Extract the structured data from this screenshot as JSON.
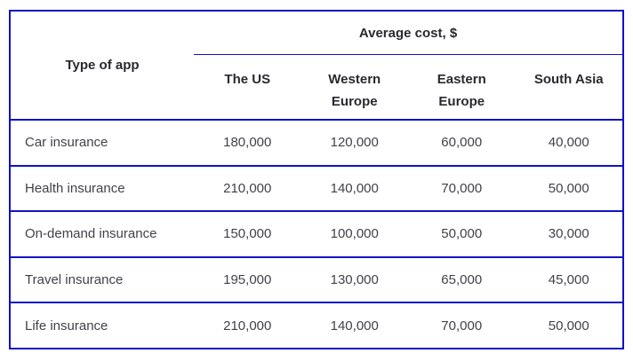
{
  "colors": {
    "border": "#1111c7",
    "heading-text": "#29292f",
    "body-text": "#414149",
    "background": "#ffffff"
  },
  "chart_data": {
    "type": "table",
    "corner_header": "Type of app",
    "group_header": "Average cost, $",
    "columns": [
      "The US",
      "Western Europe",
      "Eastern Europe",
      "South Asia"
    ],
    "rows": [
      {
        "label": "Car insurance",
        "values": [
          "180,000",
          "120,000",
          "60,000",
          "40,000"
        ]
      },
      {
        "label": "Health insurance",
        "values": [
          "210,000",
          "140,000",
          "70,000",
          "50,000"
        ]
      },
      {
        "label": "On-demand insurance",
        "values": [
          "150,000",
          "100,000",
          "50,000",
          "30,000"
        ]
      },
      {
        "label": "Travel insurance",
        "values": [
          "195,000",
          "130,000",
          "65,000",
          "45,000"
        ]
      },
      {
        "label": "Life insurance",
        "values": [
          "210,000",
          "140,000",
          "70,000",
          "50,000"
        ]
      }
    ],
    "layout": {
      "grid": "horizontal-row-separators-only",
      "group_header_spans_value_columns": true
    }
  }
}
